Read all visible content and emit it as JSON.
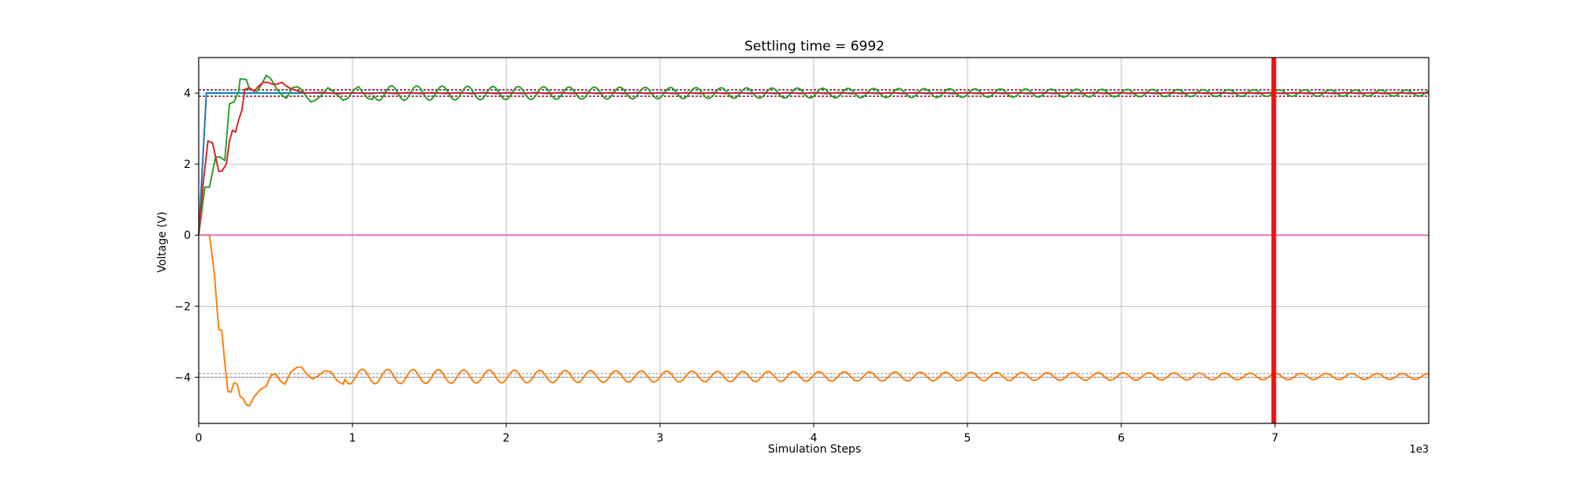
{
  "chart_data": {
    "type": "line",
    "title": "Settling time = 6992",
    "xlabel": "Simulation Steps",
    "ylabel": "Voltage (V)",
    "x_offset_label": "1e3",
    "xlim": [
      0,
      8000
    ],
    "ylim": [
      -5.3,
      5.0
    ],
    "x_ticks": [
      0,
      1000,
      2000,
      3000,
      4000,
      5000,
      6000,
      7000
    ],
    "x_tick_labels": [
      "0",
      "1",
      "2",
      "3",
      "4",
      "5",
      "6",
      "7"
    ],
    "y_ticks": [
      -4,
      -2,
      0,
      2,
      4
    ],
    "y_tick_labels": [
      "−4",
      "−2",
      "0",
      "2",
      "4"
    ],
    "grid": true,
    "legend": "none",
    "settling_time": 6992,
    "settling_line_color": "#ee1111",
    "tolerance_bands": [
      {
        "values": [
          3.92,
          4.08
        ],
        "color": "#1f77b4"
      },
      {
        "values": [
          3.9,
          4.1
        ],
        "color": "#d62728"
      },
      {
        "values": [
          -3.9,
          -4.0
        ],
        "color": "#888888"
      }
    ],
    "series": [
      {
        "color": "#1f77b4",
        "values": [
          [
            0,
            0
          ],
          [
            50,
            4.0
          ],
          [
            8000,
            4.0
          ]
        ]
      },
      {
        "color": "#2ca02c",
        "values": [
          [
            0,
            0
          ],
          [
            40,
            1.35
          ],
          [
            70,
            1.35
          ],
          [
            110,
            2.2
          ],
          [
            140,
            2.2
          ],
          [
            170,
            2.1
          ],
          [
            200,
            3.7
          ],
          [
            230,
            3.75
          ],
          [
            260,
            4.05
          ],
          [
            270,
            4.4
          ],
          [
            310,
            4.38
          ],
          [
            330,
            4.1
          ],
          [
            380,
            4.05
          ],
          [
            410,
            4.25
          ],
          [
            440,
            4.5
          ],
          [
            470,
            4.4
          ],
          [
            510,
            4.1
          ],
          [
            540,
            3.95
          ],
          [
            570,
            3.85
          ],
          [
            610,
            4.15
          ],
          [
            640,
            4.18
          ],
          [
            670,
            4.1
          ],
          [
            700,
            3.9
          ],
          [
            730,
            3.75
          ],
          [
            760,
            3.8
          ],
          [
            790,
            3.9
          ],
          [
            840,
            4.15
          ],
          [
            860,
            4.1
          ],
          [
            900,
            3.95
          ],
          [
            940,
            3.8
          ],
          [
            970,
            3.85
          ],
          [
            1010,
            4.1
          ],
          [
            1040,
            4.18
          ],
          [
            1070,
            4.0
          ],
          [
            1100,
            3.85
          ],
          [
            1130,
            3.82
          ]
        ]
      },
      {
        "color": "#d62728",
        "values": [
          [
            0,
            0
          ],
          [
            30,
            1.5
          ],
          [
            60,
            2.65
          ],
          [
            90,
            2.6
          ],
          [
            110,
            2.2
          ],
          [
            130,
            1.8
          ],
          [
            150,
            1.8
          ],
          [
            180,
            2.0
          ],
          [
            200,
            2.65
          ],
          [
            220,
            2.95
          ],
          [
            240,
            2.9
          ],
          [
            260,
            3.25
          ],
          [
            280,
            3.5
          ],
          [
            300,
            4.1
          ],
          [
            330,
            4.15
          ],
          [
            360,
            4.05
          ],
          [
            390,
            4.2
          ],
          [
            420,
            4.3
          ],
          [
            450,
            4.3
          ],
          [
            480,
            4.25
          ],
          [
            510,
            4.25
          ],
          [
            540,
            4.3
          ],
          [
            570,
            4.2
          ],
          [
            600,
            4.12
          ],
          [
            650,
            4.05
          ],
          [
            700,
            4.0
          ],
          [
            800,
            4.02
          ],
          [
            900,
            3.98
          ],
          [
            1000,
            4.01
          ],
          [
            1100,
            3.99
          ]
        ]
      },
      {
        "color": "#ff7f0e",
        "values": [
          [
            0,
            0
          ],
          [
            70,
            0
          ],
          [
            100,
            -1.0
          ],
          [
            130,
            -2.65
          ],
          [
            150,
            -2.68
          ],
          [
            170,
            -3.6
          ],
          [
            190,
            -4.4
          ],
          [
            210,
            -4.42
          ],
          [
            230,
            -4.15
          ],
          [
            250,
            -4.2
          ],
          [
            270,
            -4.55
          ],
          [
            290,
            -4.6
          ],
          [
            310,
            -4.78
          ],
          [
            330,
            -4.8
          ],
          [
            360,
            -4.55
          ],
          [
            400,
            -4.35
          ],
          [
            440,
            -4.25
          ],
          [
            470,
            -3.95
          ],
          [
            500,
            -3.9
          ],
          [
            530,
            -4.1
          ],
          [
            560,
            -4.2
          ],
          [
            600,
            -3.85
          ],
          [
            640,
            -3.72
          ],
          [
            670,
            -3.72
          ],
          [
            700,
            -3.9
          ],
          [
            740,
            -4.05
          ],
          [
            780,
            -3.95
          ],
          [
            820,
            -3.82
          ],
          [
            860,
            -3.85
          ],
          [
            900,
            -4.1
          ],
          [
            940,
            -4.2
          ]
        ]
      },
      {
        "color": "#e377c2",
        "values": [
          [
            0,
            0
          ],
          [
            8000,
            0
          ]
        ]
      }
    ],
    "oscillation": {
      "period": 165,
      "green_amp_start": 0.18,
      "orange_amp_start": 0.18,
      "decay": 0.00018
    }
  }
}
